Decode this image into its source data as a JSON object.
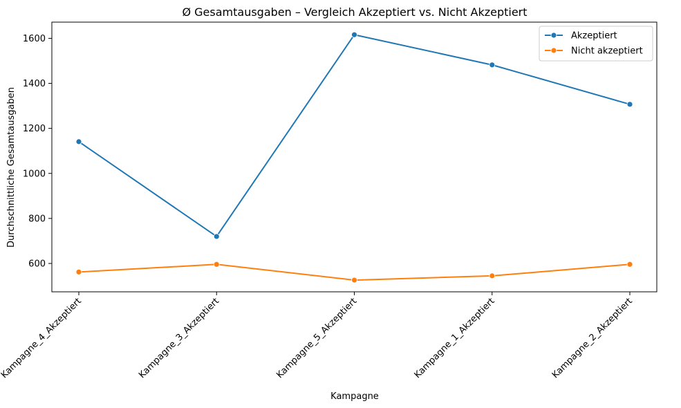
{
  "chart_data": {
    "type": "line",
    "title": "Ø Gesamtausgaben – Vergleich Akzeptiert vs. Nicht Akzeptiert",
    "xlabel": "Kampagne",
    "ylabel": "Durchschnittliche Gesamtausgaben",
    "categories": [
      "Kampagne_4_Akzeptiert",
      "Kampagne_3_Akzeptiert",
      "Kampagne_5_Akzeptiert",
      "Kampagne_1_Akzeptiert",
      "Kampagne_2_Akzeptiert"
    ],
    "yticks": [
      600,
      800,
      1000,
      1200,
      1400,
      1600
    ],
    "ylim": [
      474,
      1672
    ],
    "grid": false,
    "legend_position": "top-right",
    "series": [
      {
        "name": "Akzeptiert",
        "color": "#1f77b4",
        "marker": "circle",
        "values": [
          1141,
          720,
          1616,
          1482,
          1307
        ]
      },
      {
        "name": "Nicht akzeptiert",
        "color": "#ff7f0e",
        "marker": "circle",
        "values": [
          562,
          596,
          526,
          545,
          596
        ]
      }
    ]
  }
}
